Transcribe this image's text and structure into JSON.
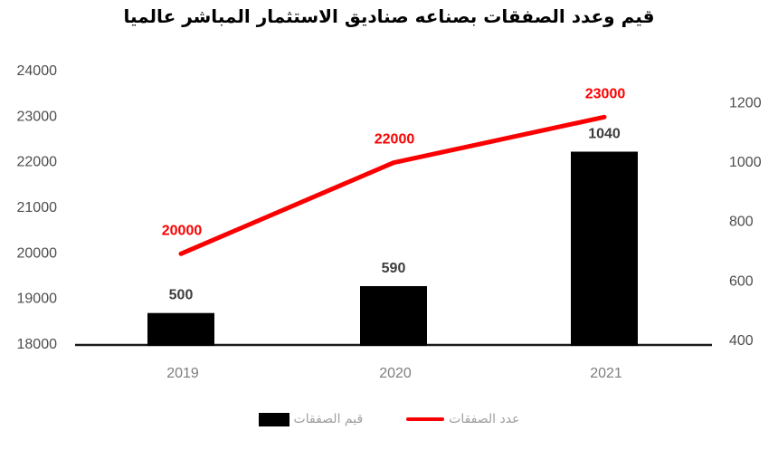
{
  "chart_data": {
    "type": "combo-bar-line",
    "title": "قيم وعدد الصفقات بصناعه صناديق الاستثمار المباشر عالميا",
    "categories": [
      "2019",
      "2020",
      "2021"
    ],
    "series": [
      {
        "name": "قيم الصفقات",
        "type": "bar",
        "axis": "right",
        "color": "#000000",
        "values": [
          500,
          590,
          1040
        ]
      },
      {
        "name": "عدد الصفقات",
        "type": "line",
        "axis": "left",
        "color": "#fb0000",
        "values": [
          20000,
          22000,
          23000
        ]
      }
    ],
    "left_axis": {
      "range": [
        18000,
        24000
      ],
      "ticks": [
        18000,
        19000,
        20000,
        21000,
        22000,
        23000,
        24000
      ]
    },
    "right_axis": {
      "range": [
        400,
        1200
      ],
      "ticks": [
        400,
        600,
        800,
        1000,
        1200
      ]
    },
    "data_labels": true,
    "grid": false,
    "legend_position": "bottom"
  },
  "colors": {
    "line_red": "#fb0000",
    "bar_black": "#000000",
    "axis_line": "#1a1a1a",
    "tick_label": "#4d4d4d",
    "bar_value_label": "#3d3d3d",
    "line_value_label": "#fb0000",
    "category_label": "#7d7d7d",
    "legend_label": "#9e9e9e"
  }
}
